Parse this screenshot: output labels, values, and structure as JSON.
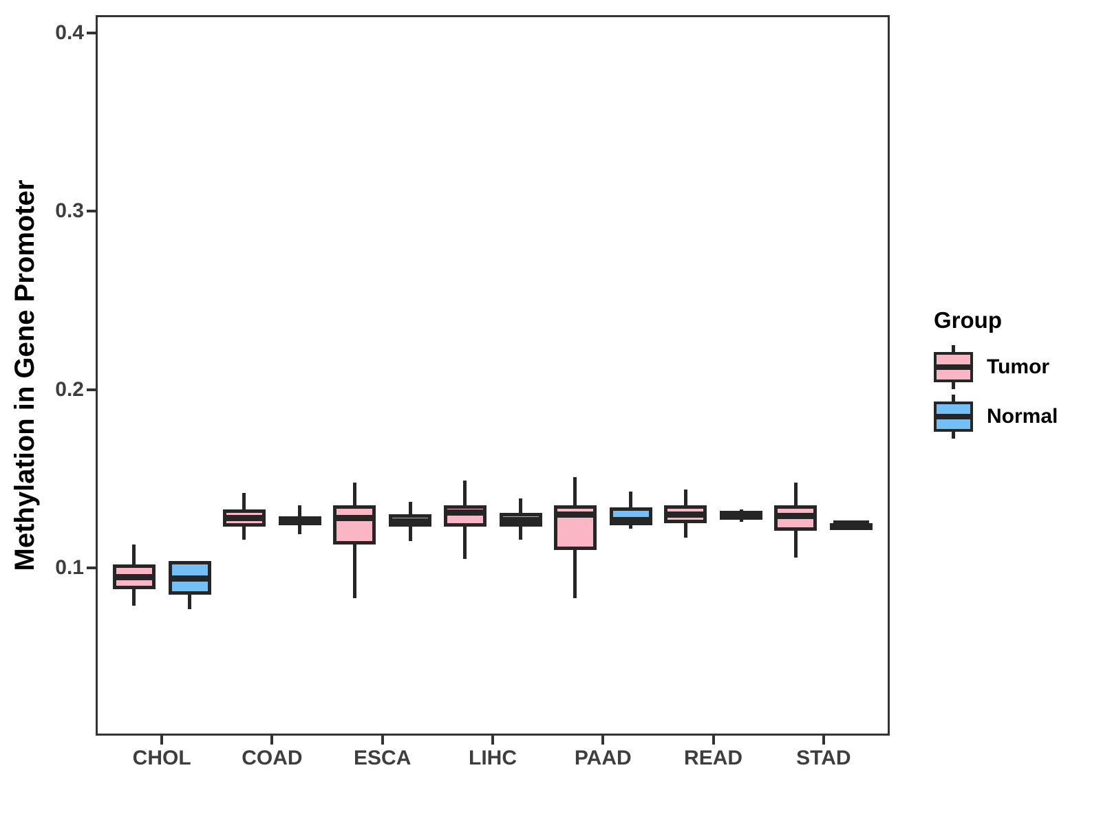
{
  "figure": {
    "y_axis_title": "Methylation in Gene Promoter"
  },
  "legend": {
    "title": "Group",
    "entries": [
      {
        "label": "Tumor",
        "color": "#FAB6C4"
      },
      {
        "label": "Normal",
        "color": "#74C0F6"
      }
    ]
  },
  "style": {
    "stroke": "#262626",
    "axis_line": "#333333",
    "tick_text_color": "#3e3e3e",
    "tumor_fill": "#FAB6C4",
    "normal_fill": "#74C0F6"
  },
  "chart_data": {
    "type": "boxplot",
    "title": "",
    "xlabel": "",
    "ylabel": "Methylation in Gene Promoter",
    "categories": [
      "CHOL",
      "COAD",
      "ESCA",
      "LIHC",
      "PAAD",
      "READ",
      "STAD"
    ],
    "y_ticks": [
      0.1,
      0.2,
      0.3,
      0.4
    ],
    "y_tick_labels": [
      "0.1",
      "0.2",
      "0.3",
      "0.4"
    ],
    "ylim": [
      0.006,
      0.41
    ],
    "grid": false,
    "legend_position": "right",
    "legend_title": "Group",
    "series": [
      {
        "name": "Tumor",
        "fill": "#FAB6C4",
        "boxes": [
          {
            "category": "CHOL",
            "whisker_low": 0.079,
            "q1": 0.088,
            "median": 0.095,
            "q3": 0.102,
            "whisker_high": 0.113
          },
          {
            "category": "COAD",
            "whisker_low": 0.116,
            "q1": 0.123,
            "median": 0.128,
            "q3": 0.133,
            "whisker_high": 0.142
          },
          {
            "category": "ESCA",
            "whisker_low": 0.083,
            "q1": 0.113,
            "median": 0.128,
            "q3": 0.135,
            "whisker_high": 0.148
          },
          {
            "category": "LIHC",
            "whisker_low": 0.105,
            "q1": 0.123,
            "median": 0.131,
            "q3": 0.135,
            "whisker_high": 0.149
          },
          {
            "category": "PAAD",
            "whisker_low": 0.083,
            "q1": 0.11,
            "median": 0.13,
            "q3": 0.135,
            "whisker_high": 0.151
          },
          {
            "category": "READ",
            "whisker_low": 0.117,
            "q1": 0.125,
            "median": 0.13,
            "q3": 0.135,
            "whisker_high": 0.144
          },
          {
            "category": "STAD",
            "whisker_low": 0.106,
            "q1": 0.121,
            "median": 0.129,
            "q3": 0.135,
            "whisker_high": 0.148
          }
        ]
      },
      {
        "name": "Normal",
        "fill": "#74C0F6",
        "boxes": [
          {
            "category": "CHOL",
            "whisker_low": 0.077,
            "q1": 0.085,
            "median": 0.094,
            "q3": 0.104,
            "whisker_high": 0.104
          },
          {
            "category": "COAD",
            "whisker_low": 0.119,
            "q1": 0.124,
            "median": 0.127,
            "q3": 0.129,
            "whisker_high": 0.135
          },
          {
            "category": "ESCA",
            "whisker_low": 0.115,
            "q1": 0.123,
            "median": 0.126,
            "q3": 0.13,
            "whisker_high": 0.137
          },
          {
            "category": "LIHC",
            "whisker_low": 0.116,
            "q1": 0.123,
            "median": 0.127,
            "q3": 0.131,
            "whisker_high": 0.139
          },
          {
            "category": "PAAD",
            "whisker_low": 0.122,
            "q1": 0.124,
            "median": 0.127,
            "q3": 0.134,
            "whisker_high": 0.143
          },
          {
            "category": "READ",
            "whisker_low": 0.126,
            "q1": 0.127,
            "median": 0.13,
            "q3": 0.132,
            "whisker_high": 0.133
          },
          {
            "category": "STAD",
            "whisker_low": 0.125,
            "q1": 0.125,
            "median": 0.125,
            "q3": 0.125,
            "whisker_high": 0.125
          }
        ]
      }
    ]
  }
}
